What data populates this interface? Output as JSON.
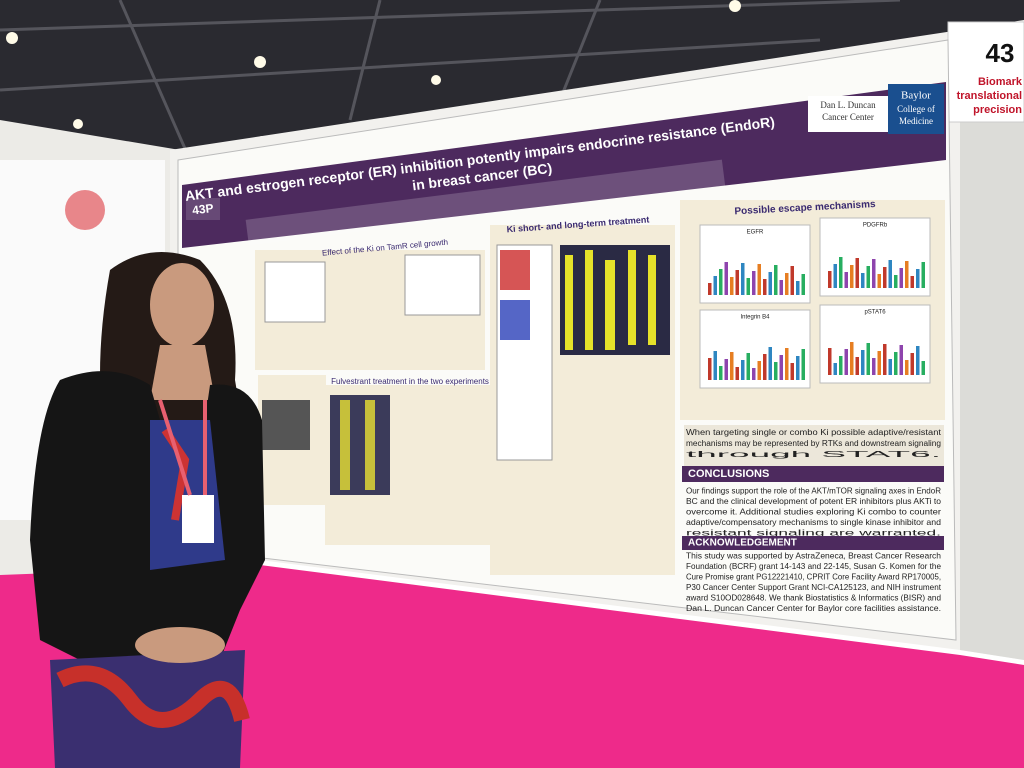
{
  "sign": {
    "number": "43",
    "lines": [
      "Biomark",
      "translational",
      "precision"
    ]
  },
  "poster": {
    "number": "43P",
    "title": [
      "AKT and estrogen receptor (ER) inhibition potently impairs endocrine resistance (EndoR)",
      "in breast cancer (BC)"
    ],
    "logos": [
      "Dan L. Duncan",
      "Cancer Center",
      "Baylor",
      "College of",
      "Medicine"
    ],
    "sections": [
      "Effect of the Ki on TamR cell growth",
      "Ki short- and long-term treatment",
      "Possible escape mechanisms",
      "Fulvestrant treatment in the two experiments"
    ],
    "panels": [
      "EGFR",
      "PDGFRb",
      "Integrin B4",
      "pSTAT6"
    ],
    "summary": [
      "When targeting single or combo Ki possible adaptive/resistant",
      "mechanisms may be represented by RTKs and downstream signaling",
      "through STAT6."
    ],
    "conclusions": {
      "heading": "CONCLUSIONS",
      "lines": [
        "Our findings support the role of the AKT/mTOR signaling axes in EndoR",
        "BC and the clinical development of potent ER inhibitors plus AKTi to",
        "overcome it. Additional studies exploring Ki combo to counter",
        "adaptive/compensatory mechanisms to single kinase inhibitor and",
        "resistant signaling are warranted."
      ]
    },
    "acknowledgement": {
      "heading": "ACKNOWLEDGEMENT",
      "lines": [
        "This study was supported by AstraZeneca, Breast Cancer Research",
        "Foundation (BCRF) grant 14-143 and 22-145, Susan G. Komen for the",
        "Cure Promise grant PG12221410, CPRIT Core Facility Award RP170005,",
        "P30 Cancer Center Support Grant NCI-CA125123, and NIH instrument",
        "award S10OD028648. We thank Biostatistics & Informatics (BISR) and",
        "Dan L. Duncan Cancer Center for Baylor core facilities assistance."
      ]
    }
  }
}
